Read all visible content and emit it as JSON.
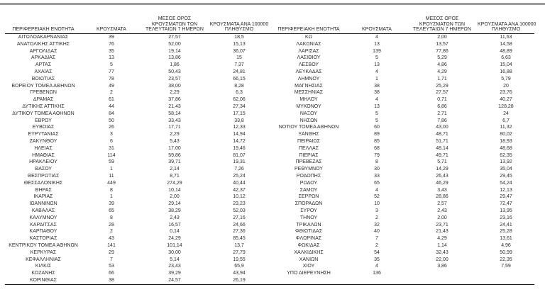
{
  "page": {
    "background": "#ffffff",
    "top_bar_color": "#9b9b9b",
    "text_color": "#2e2e2e",
    "rule_color": "#1a1a1a"
  },
  "table": {
    "headers": {
      "region": "ΠΕΡΙΦΕΡΕΙΑΚΗ ΕΝΟΤΗΤΑ",
      "cases": "ΚΡΟΥΣΜΑΤΑ",
      "avg7_lines": [
        "ΜΕΣΟΣ ΟΡΟΣ",
        "ΚΡΟΥΣΜΑΤΩΝ ΤΩΝ",
        "ΤΕΛΕΥΤΑΙΩΝ 7 ΗΜΕΡΩΝ"
      ],
      "per100k_lines": [
        "ΚΡΟΥΣΜΑΤΑ ΑΝΑ 100000",
        "ΠΛΗΘΥΣΜΟ"
      ]
    },
    "left_rows": [
      [
        "ΑΙΤΩΛΟΑΚΑΡΝΑΝΙΑΣ",
        "39",
        "27,57",
        "18,5"
      ],
      [
        "ΑΝΑΤΟΛΙΚΗΣ ΑΤΤΙΚΗΣ",
        "76",
        "52,00",
        "15,13"
      ],
      [
        "ΑΡΓΟΛΙΔΑΣ",
        "35",
        "19,14",
        "36,07"
      ],
      [
        "ΑΡΚΑΔΙΑΣ",
        "13",
        "13,86",
        "15"
      ],
      [
        "ΑΡΤΑΣ",
        "5",
        "1,86",
        "7,37"
      ],
      [
        "ΑΧΑΪΑΣ",
        "77",
        "50,43",
        "24,81"
      ],
      [
        "ΒΟΙΩΤΙΑΣ",
        "78",
        "23,57",
        "66,15"
      ],
      [
        "ΒΟΡΕΙΟΥ ΤΟΜΕΑ ΑΘΗΝΩΝ",
        "49",
        "38,00",
        "8,28"
      ],
      [
        "ΓΡΕΒΕΝΩΝ",
        "2",
        "2,29",
        "6,3"
      ],
      [
        "ΔΡΑΜΑΣ",
        "61",
        "37,86",
        "62,06"
      ],
      [
        "ΔΥΤΙΚΗΣ ΑΤΤΙΚΗΣ",
        "44",
        "21,43",
        "27,34"
      ],
      [
        "ΔΥΤΙΚΟΥ ΤΟΜΕΑ ΑΘΗΝΩΝ",
        "84",
        "58,14",
        "17,15"
      ],
      [
        "ΕΒΡΟΥ",
        "50",
        "33,43",
        "33,8"
      ],
      [
        "ΕΥΒΟΙΑΣ",
        "26",
        "17,71",
        "12,33"
      ],
      [
        "ΕΥΡΥΤΑΝΙΑΣ",
        "3",
        "2,29",
        "14,94"
      ],
      [
        "ΖΑΚΥΝΘΟΥ",
        "6",
        "5,43",
        "14,72"
      ],
      [
        "ΗΛΕΙΑΣ",
        "31",
        "17,00",
        "19,46"
      ],
      [
        "ΗΜΑΘΙΑΣ",
        "114",
        "59,86",
        "81,07"
      ],
      [
        "ΗΡΑΚΛΕΙΟΥ",
        "59",
        "39,71",
        "19,31"
      ],
      [
        "ΘΑΣΟΥ",
        "1",
        "2,14",
        "7,26"
      ],
      [
        "ΘΕΣΠΡΩΤΙΑΣ",
        "11",
        "8,71",
        "25,24"
      ],
      [
        "ΘΕΣΣΑΛΟΝΙΚΗΣ",
        "449",
        "274,29",
        "40,44"
      ],
      [
        "ΘΗΡΑΣ",
        "8",
        "10,14",
        "42,37"
      ],
      [
        "ΙΚΑΡΙΑΣ",
        "1",
        "2,00",
        "10,12"
      ],
      [
        "ΙΩΑΝΝΙΝΩΝ",
        "39",
        "29,14",
        "23,23"
      ],
      [
        "ΚΑΒΑΛΑΣ",
        "65",
        "38,29",
        "52,03"
      ],
      [
        "ΚΑΛΥΜΝΟΥ",
        "8",
        "2,43",
        "27,16"
      ],
      [
        "ΚΑΡΔΙΤΣΑΣ",
        "28",
        "16,57",
        "24,66"
      ],
      [
        "ΚΑΡΠΑΘΟΥ",
        "2",
        "0,14",
        "27,36"
      ],
      [
        "ΚΑΣΤΟΡΙΑΣ",
        "43",
        "24,29",
        "85,45"
      ],
      [
        "ΚΕΝΤΡΙΚΟΥ ΤΟΜΕΑ ΑΘΗΝΩΝ",
        "141",
        "101,14",
        "13,7"
      ],
      [
        "ΚΕΡΚΥΡΑΣ",
        "29",
        "30,00",
        "27,79"
      ],
      [
        "ΚΕΦΑΛΛΗΝΙΑΣ",
        "7",
        "5,14",
        "19,55"
      ],
      [
        "ΚΙΛΚΙΣ",
        "53",
        "23,43",
        "65,9"
      ],
      [
        "ΚΟΖΑΝΗΣ",
        "66",
        "39,29",
        "43,94"
      ],
      [
        "ΚΟΡΙΝΘΙΑΣ",
        "38",
        "24,57",
        "26,19"
      ]
    ],
    "right_rows": [
      [
        "ΚΩ",
        "4",
        "2,00",
        "11,63"
      ],
      [
        "ΛΑΚΩΝΙΑΣ",
        "13",
        "13,57",
        "14,58"
      ],
      [
        "ΛΑΡΙΣΑΣ",
        "139",
        "77,86",
        "48,89"
      ],
      [
        "ΛΑΣΙΘΙΟΥ",
        "5",
        "5,29",
        "6,63"
      ],
      [
        "ΛΕΣΒΟΥ",
        "13",
        "4,86",
        "15,04"
      ],
      [
        "ΛΕΥΚΑΔΑΣ",
        "4",
        "4,29",
        "16,88"
      ],
      [
        "ΛΗΜΝΟΥ",
        "1",
        "1,71",
        "5,79"
      ],
      [
        "ΜΑΓΝΗΣΙΑΣ",
        "38",
        "25,29",
        "20"
      ],
      [
        "ΜΕΣΣΗΝΙΑΣ",
        "38",
        "27,57",
        "23,76"
      ],
      [
        "ΜΗΛΟΥ",
        "4",
        "0,71",
        "40,27"
      ],
      [
        "ΜΥΚΟΝΟΥ",
        "13",
        "6,86",
        "128,28"
      ],
      [
        "ΝΑΞΟΥ",
        "5",
        "2,71",
        "24"
      ],
      [
        "ΝΗΣΩΝ",
        "5",
        "7,86",
        "6,7"
      ],
      [
        "ΝΟΤΙΟΥ ΤΟΜΕΑ ΑΘΗΝΩΝ",
        "60",
        "43,00",
        "11,32"
      ],
      [
        "ΞΑΝΘΗΣ",
        "89",
        "48,71",
        "80,02"
      ],
      [
        "ΠΕΙΡΑΙΩΣ",
        "85",
        "51,71",
        "18,93"
      ],
      [
        "ΠΕΛΛΑΣ",
        "68",
        "48,14",
        "48,68"
      ],
      [
        "ΠΙΕΡΙΑΣ",
        "79",
        "49,71",
        "62,35"
      ],
      [
        "ΠΡΕΒΕΖΑΣ",
        "8",
        "5,71",
        "13,92"
      ],
      [
        "ΡΕΘΥΜΝΟΥ",
        "30",
        "14,29",
        "35,04"
      ],
      [
        "ΡΟΔΟΠΗΣ",
        "33",
        "26,43",
        "29,45"
      ],
      [
        "ΡΟΔΟΥ",
        "65",
        "46,29",
        "54,24"
      ],
      [
        "ΣΑΜΟΥ",
        "4",
        "3,43",
        "12,13"
      ],
      [
        "ΣΕΡΡΩΝ",
        "52",
        "28,86",
        "29,47"
      ],
      [
        "ΣΠΟΡΑΔΩΝ",
        "10",
        "2,57",
        "72,47"
      ],
      [
        "ΣΥΡΟΥ",
        "3",
        "2,43",
        "13,95"
      ],
      [
        "ΤΗΝΟΥ",
        "2",
        "2,00",
        "23,16"
      ],
      [
        "ΤΡΙΚΑΛΩΝ",
        "32",
        "23,71",
        "24,41"
      ],
      [
        "ΦΘΙΩΤΙΔΑΣ",
        "40",
        "21,43",
        "25,28"
      ],
      [
        "ΦΛΩΡΙΝΑΣ",
        "7",
        "4,29",
        "13,61"
      ],
      [
        "ΦΩΚΙΔΑΣ",
        "2",
        "1,14",
        "4,96"
      ],
      [
        "ΧΑΛΚΙΔΙΚΗΣ",
        "54",
        "32,43",
        "50,99"
      ],
      [
        "ΧΑΝΙΩΝ",
        "35",
        "22,00",
        "22,35"
      ],
      [
        "ΧΙΟΥ",
        "4",
        "3,86",
        "7,59"
      ],
      [
        "ΥΠΟ ΔΙΕΡΕΥΝΗΣΗ",
        "136",
        "",
        ""
      ],
      [
        "",
        "",
        "",
        ""
      ]
    ]
  }
}
